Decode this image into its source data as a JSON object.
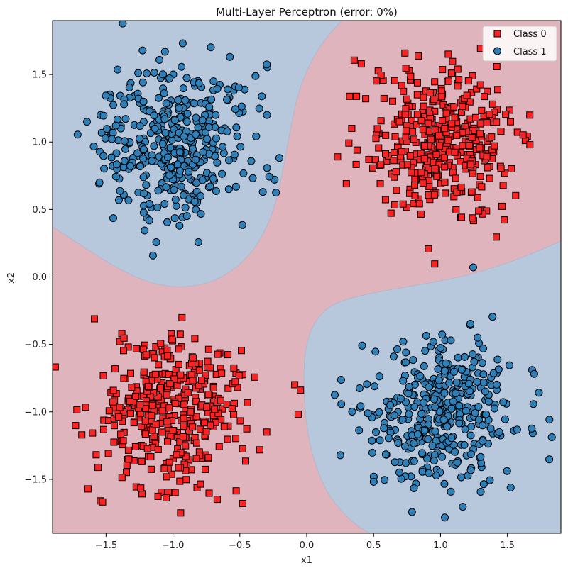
{
  "chart_data": {
    "type": "scatter",
    "title": "Multi-Layer Perceptron (error: 0%)",
    "xlabel": "x1",
    "ylabel": "x2",
    "xlim": [
      -1.9,
      1.9
    ],
    "ylim": [
      -1.9,
      1.9
    ],
    "xticks": [
      -1.5,
      -1.0,
      -0.5,
      0.0,
      0.5,
      1.0,
      1.5
    ],
    "yticks": [
      -1.5,
      -1.0,
      -0.5,
      0.0,
      0.5,
      1.0,
      1.5
    ],
    "xtick_labels": [
      "−1.5",
      "−1.0",
      "−0.5",
      "0.0",
      "0.5",
      "1.0",
      "1.5"
    ],
    "ytick_labels": [
      "−1.5",
      "−1.0",
      "−0.5",
      "0.0",
      "0.5",
      "1.0",
      "1.5"
    ],
    "grid": false,
    "legend_position": "top-right",
    "decision_regions": {
      "class0_color": "#e0b4bc",
      "class1_color": "#b7c8dc"
    },
    "series": [
      {
        "name": "Class 0",
        "marker": "square",
        "color": "#ff2222",
        "clusters": [
          {
            "center": [
              1.0,
              1.0
            ],
            "spread": 0.28,
            "count": 400
          },
          {
            "center": [
              -1.0,
              -1.0
            ],
            "spread": 0.28,
            "count": 400
          }
        ]
      },
      {
        "name": "Class 1",
        "marker": "circle",
        "color": "#2f7fb8",
        "clusters": [
          {
            "center": [
              -1.0,
              1.0
            ],
            "spread": 0.28,
            "count": 400
          },
          {
            "center": [
              1.0,
              -1.0
            ],
            "spread": 0.28,
            "count": 400
          }
        ]
      }
    ]
  }
}
